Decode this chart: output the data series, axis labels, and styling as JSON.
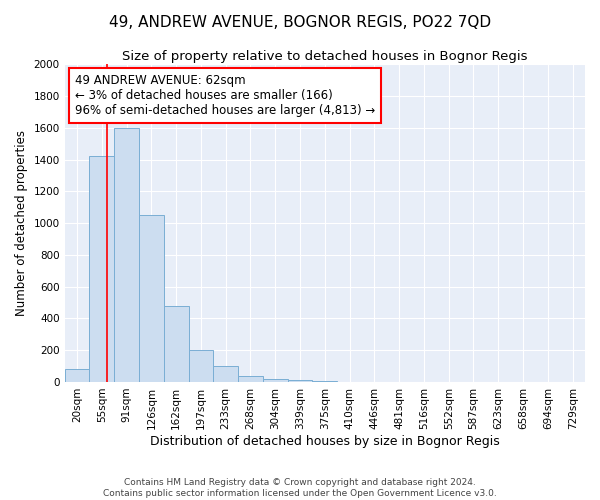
{
  "title": "49, ANDREW AVENUE, BOGNOR REGIS, PO22 7QD",
  "subtitle": "Size of property relative to detached houses in Bognor Regis",
  "xlabel": "Distribution of detached houses by size in Bognor Regis",
  "ylabel": "Number of detached properties",
  "footnote": "Contains HM Land Registry data © Crown copyright and database right 2024.\nContains public sector information licensed under the Open Government Licence v3.0.",
  "bar_labels": [
    "20sqm",
    "55sqm",
    "91sqm",
    "126sqm",
    "162sqm",
    "197sqm",
    "233sqm",
    "268sqm",
    "304sqm",
    "339sqm",
    "375sqm",
    "410sqm",
    "446sqm",
    "481sqm",
    "516sqm",
    "552sqm",
    "587sqm",
    "623sqm",
    "658sqm",
    "694sqm",
    "729sqm"
  ],
  "bar_values": [
    80,
    1420,
    1600,
    1050,
    480,
    200,
    100,
    35,
    20,
    15,
    5,
    0,
    0,
    0,
    0,
    0,
    0,
    0,
    0,
    0,
    0
  ],
  "bar_color": "#ccddf0",
  "bar_edge_color": "#7aaed4",
  "ylim": [
    0,
    2000
  ],
  "yticks": [
    0,
    200,
    400,
    600,
    800,
    1000,
    1200,
    1400,
    1600,
    1800,
    2000
  ],
  "annotation_text": "49 ANDREW AVENUE: 62sqm\n← 3% of detached houses are smaller (166)\n96% of semi-detached houses are larger (4,813) →",
  "annotation_box_color": "white",
  "annotation_box_edge": "red",
  "redline_x": 1.19,
  "background_color": "#e8eef8",
  "grid_color": "white",
  "title_fontsize": 11,
  "subtitle_fontsize": 9.5,
  "tick_fontsize": 7.5,
  "ylabel_fontsize": 8.5,
  "xlabel_fontsize": 9,
  "annotation_fontsize": 8.5,
  "footnote_fontsize": 6.5
}
